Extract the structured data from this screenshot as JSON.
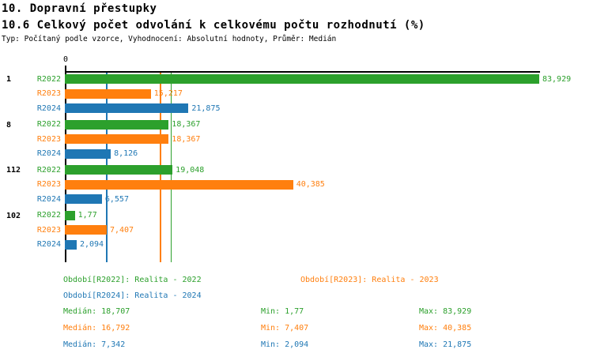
{
  "header": {
    "title": "10. Dopravní přestupky",
    "subtitle": "10.6 Celkový počet odvolání k celkovému počtu rozhodnutí (%)",
    "meta": "Typ: Počítaný podle vzorce, Vyhodnocení: Absolutní hodnoty, Průměr: Medián"
  },
  "chart_data": {
    "type": "bar",
    "orientation": "horizontal",
    "title": "10.6 Celkový počet odvolání k celkovému počtu rozhodnutí (%)",
    "x_axis": {
      "tick_label": "0",
      "min": 0,
      "max": 83.929,
      "grid": "median-lines-only"
    },
    "series_colors": {
      "R2022": "#2ca02c",
      "R2023": "#ff7f0e",
      "R2024": "#1f77b4"
    },
    "axis_color": "#000000",
    "groups": [
      {
        "label": "1",
        "bars": [
          {
            "series": "R2022",
            "value": 83.929,
            "display": "83,929"
          },
          {
            "series": "R2023",
            "value": 15.217,
            "display": "15,217"
          },
          {
            "series": "R2024",
            "value": 21.875,
            "display": "21,875"
          }
        ]
      },
      {
        "label": "8",
        "bars": [
          {
            "series": "R2022",
            "value": 18.367,
            "display": "18,367"
          },
          {
            "series": "R2023",
            "value": 18.367,
            "display": "18,367"
          },
          {
            "series": "R2024",
            "value": 8.126,
            "display": "8,126"
          }
        ]
      },
      {
        "label": "112",
        "bars": [
          {
            "series": "R2022",
            "value": 19.048,
            "display": "19,048"
          },
          {
            "series": "R2023",
            "value": 40.385,
            "display": "40,385"
          },
          {
            "series": "R2024",
            "value": 6.557,
            "display": "6,557"
          }
        ]
      },
      {
        "label": "102",
        "bars": [
          {
            "series": "R2022",
            "value": 1.77,
            "display": "1,77"
          },
          {
            "series": "R2023",
            "value": 7.407,
            "display": "7,407"
          },
          {
            "series": "R2024",
            "value": 2.094,
            "display": "2,094"
          }
        ]
      }
    ],
    "median_lines": [
      {
        "series": "R2022",
        "value": 18.707
      },
      {
        "series": "R2023",
        "value": 16.792
      },
      {
        "series": "R2024",
        "value": 7.342
      }
    ]
  },
  "legend": {
    "items": [
      {
        "series": "R2022",
        "text": "Období[R2022]: Realita - 2022"
      },
      {
        "series": "R2023",
        "text": "Období[R2023]: Realita - 2023"
      },
      {
        "series": "R2024",
        "text": "Období[R2024]: Realita - 2024"
      }
    ]
  },
  "stats": {
    "rows": [
      {
        "series": "R2022",
        "median": "Medián: 18,707",
        "min": "Min: 1,77",
        "max": "Max: 83,929"
      },
      {
        "series": "R2023",
        "median": "Medián: 16,792",
        "min": "Min: 7,407",
        "max": "Max: 40,385"
      },
      {
        "series": "R2024",
        "median": "Medián: 7,342",
        "min": "Min: 2,094",
        "max": "Max: 21,875"
      }
    ]
  }
}
